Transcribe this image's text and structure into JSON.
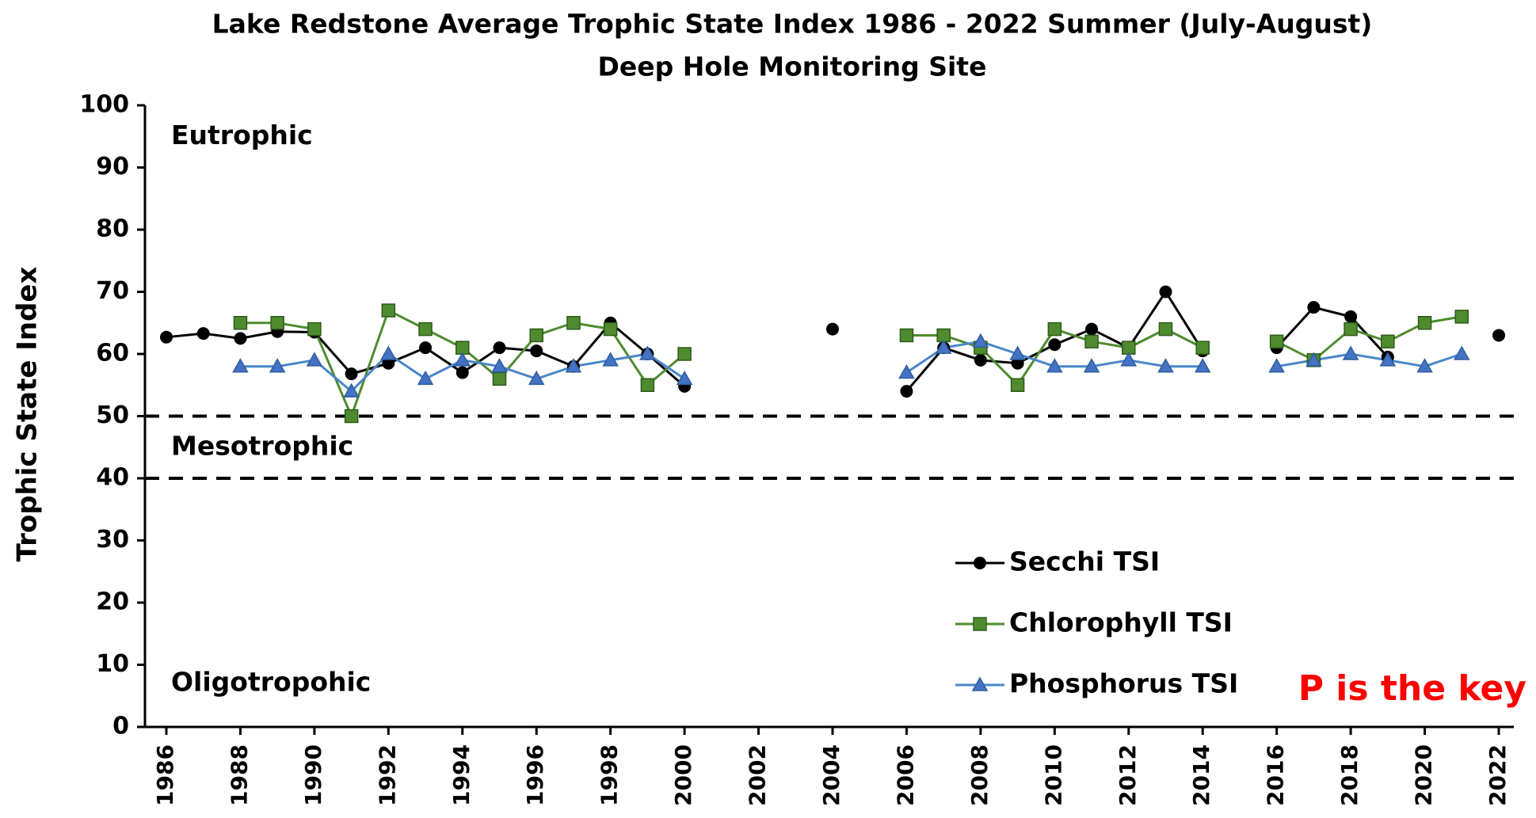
{
  "chart_data": {
    "type": "line",
    "title": "Lake Redstone Average Trophic State Index 1986 - 2022 Summer (July-August)",
    "subtitle": "Deep Hole Monitoring Site",
    "y_label": "Trophic State Index",
    "annotations": [
      "Eutrophic",
      "Mesotrophic",
      "Oligotropohic",
      "P is the key"
    ],
    "annotation_values": [
      95,
      45,
      7
    ],
    "reference_lines": [
      50,
      40
    ],
    "x": [
      1986,
      1987,
      1988,
      1989,
      1990,
      1991,
      1992,
      1993,
      1994,
      1995,
      1996,
      1997,
      1998,
      1999,
      2000,
      2001,
      2002,
      2003,
      2004,
      2005,
      2006,
      2007,
      2008,
      2009,
      2010,
      2011,
      2012,
      2013,
      2014,
      2015,
      2016,
      2017,
      2018,
      2019,
      2020,
      2021,
      2022
    ],
    "series": [
      {
        "name": "Secchi TSI",
        "color": "#000000",
        "marker": "circle",
        "values": [
          62.7,
          63.3,
          62.5,
          63.6,
          63.5,
          56.8,
          58.5,
          61,
          57,
          61,
          60.5,
          58,
          65,
          60,
          54.8,
          null,
          null,
          null,
          64,
          null,
          54,
          61,
          59,
          58.5,
          61.5,
          64,
          61,
          70,
          60.5,
          null,
          61,
          67.5,
          66,
          59.5,
          null,
          null,
          63
        ]
      },
      {
        "name": "Chlorophyll TSI",
        "color": "#4e8b2f",
        "marker": "square",
        "values": [
          null,
          null,
          65,
          65,
          64,
          50,
          67,
          64,
          61,
          56,
          63,
          65,
          64,
          55,
          60,
          null,
          null,
          null,
          null,
          null,
          63,
          63,
          61,
          55,
          64,
          62,
          61,
          64,
          61,
          null,
          62,
          59,
          64,
          62,
          65,
          66,
          null
        ]
      },
      {
        "name": "Phosphorus TSI",
        "color": "#4a86c8",
        "marker": "triangle",
        "values": [
          null,
          null,
          58,
          58,
          59,
          54,
          60,
          56,
          59,
          58,
          56,
          58,
          59,
          60,
          56,
          null,
          null,
          null,
          null,
          null,
          57,
          61,
          62,
          60,
          58,
          58,
          59,
          58,
          58,
          null,
          58,
          59,
          60,
          59,
          58,
          60,
          null
        ]
      }
    ],
    "xlim": [
      1986,
      2022
    ],
    "xticks": [
      1986,
      1988,
      1990,
      1992,
      1994,
      1996,
      1998,
      2000,
      2002,
      2004,
      2006,
      2008,
      2010,
      2012,
      2014,
      2016,
      2018,
      2020,
      2022
    ],
    "ylim": [
      0,
      100
    ],
    "yticks": [
      0,
      10,
      20,
      30,
      40,
      50,
      60,
      70,
      80,
      90,
      100
    ],
    "grid": false
  }
}
